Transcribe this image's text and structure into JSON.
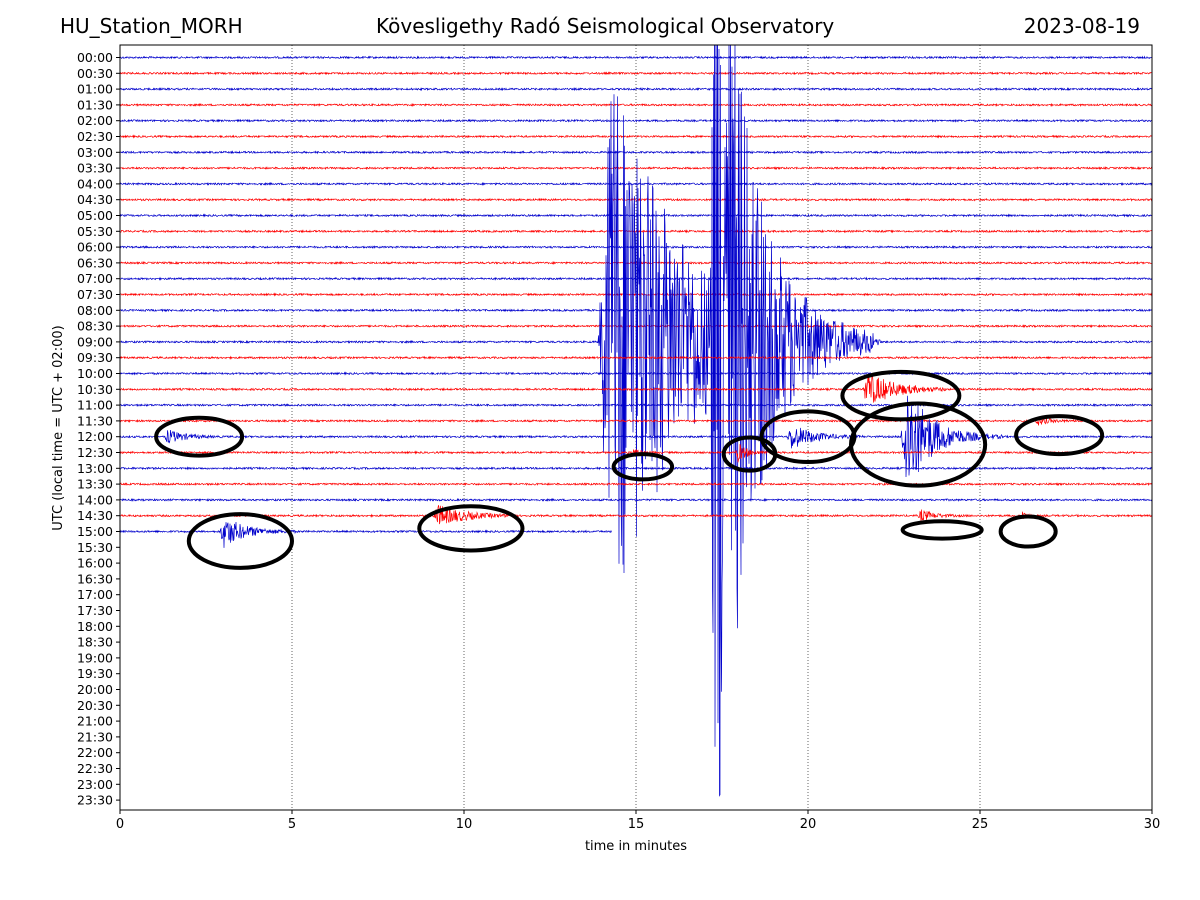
{
  "header": {
    "station": "HU_Station_MORH",
    "observatory": "Kövesligethy Radó Seismological Observatory",
    "date": "2023-08-19"
  },
  "chart_data": {
    "type": "line",
    "title": "Kövesligethy Radó Seismological Observatory",
    "xlabel": "time in minutes",
    "ylabel": "UTC (local time = UTC + 02:00)",
    "xlim": [
      0,
      30
    ],
    "x_ticks": [
      0,
      5,
      10,
      15,
      20,
      25,
      30
    ],
    "x_grid_dotted": [
      5,
      10,
      15,
      20,
      25
    ],
    "row_labels": [
      "00:00",
      "00:30",
      "01:00",
      "01:30",
      "02:00",
      "02:30",
      "03:00",
      "03:30",
      "04:00",
      "04:30",
      "05:00",
      "05:30",
      "06:00",
      "06:30",
      "07:00",
      "07:30",
      "08:00",
      "08:30",
      "09:00",
      "09:30",
      "10:00",
      "10:30",
      "11:00",
      "11:30",
      "12:00",
      "12:30",
      "13:00",
      "13:30",
      "14:00",
      "14:30",
      "15:00",
      "15:30",
      "16:00",
      "16:30",
      "17:00",
      "17:30",
      "18:00",
      "18:30",
      "19:00",
      "19:30",
      "20:00",
      "20:30",
      "21:00",
      "21:30",
      "22:00",
      "22:30",
      "23:00",
      "23:30"
    ],
    "recorded_rows": 31,
    "last_row_end_minute": 14.3,
    "trace_colors": [
      "#0000cc",
      "#ff0000"
    ],
    "events": [
      {
        "row": 24,
        "start": 1.3,
        "dur": 1.8,
        "amp": 7,
        "decay": 0.55
      },
      {
        "row": 30,
        "start": 2.9,
        "dur": 2.2,
        "amp": 16,
        "decay": 0.6
      },
      {
        "row": 29,
        "start": 9.1,
        "dur": 2.4,
        "amp": 11,
        "decay": 0.7
      },
      {
        "row": 25,
        "start": 14.9,
        "dur": 1.0,
        "amp": 4,
        "decay": 0.5
      },
      {
        "row": 25,
        "start": 17.9,
        "dur": 1.1,
        "amp": 10,
        "decay": 0.5
      },
      {
        "row": 24,
        "start": 19.4,
        "dur": 2.2,
        "amp": 13,
        "decay": 0.6
      },
      {
        "row": 21,
        "start": 21.6,
        "dur": 2.4,
        "amp": 18,
        "decay": 0.7
      },
      {
        "row": 24,
        "start": 22.7,
        "dur": 3.0,
        "amp": 60,
        "decay": 0.5
      },
      {
        "row": 23,
        "start": 26.6,
        "dur": 1.4,
        "amp": 4,
        "decay": 0.5
      },
      {
        "row": 29,
        "start": 23.2,
        "dur": 1.6,
        "amp": 6,
        "decay": 0.5
      },
      {
        "row": 29,
        "start": 26.2,
        "dur": 0.5,
        "amp": 7,
        "decay": 0.4
      },
      {
        "row": 18,
        "start": 13.9,
        "dur": 8.0,
        "amp": 290,
        "decay": 0.55
      },
      {
        "row": 18,
        "start": 17.1,
        "dur": 5.0,
        "amp": 480,
        "decay": 0.4
      }
    ],
    "annotation_ellipses": [
      {
        "cx": 2.3,
        "row": 24.0,
        "rx": 1.25,
        "ry": 1.2
      },
      {
        "cx": 3.5,
        "row": 30.6,
        "rx": 1.5,
        "ry": 1.7
      },
      {
        "cx": 10.2,
        "row": 29.8,
        "rx": 1.5,
        "ry": 1.4
      },
      {
        "cx": 15.2,
        "row": 25.9,
        "rx": 0.85,
        "ry": 0.8
      },
      {
        "cx": 18.3,
        "row": 25.1,
        "rx": 0.75,
        "ry": 1.05
      },
      {
        "cx": 20.0,
        "row": 24.0,
        "rx": 1.35,
        "ry": 1.6
      },
      {
        "cx": 22.7,
        "row": 21.4,
        "rx": 1.7,
        "ry": 1.5
      },
      {
        "cx": 23.2,
        "row": 24.5,
        "rx": 1.95,
        "ry": 2.6
      },
      {
        "cx": 27.3,
        "row": 23.9,
        "rx": 1.25,
        "ry": 1.2
      },
      {
        "cx": 23.9,
        "row": 29.9,
        "rx": 1.15,
        "ry": 0.55
      },
      {
        "cx": 26.4,
        "row": 30.0,
        "rx": 0.8,
        "ry": 0.95
      }
    ]
  }
}
